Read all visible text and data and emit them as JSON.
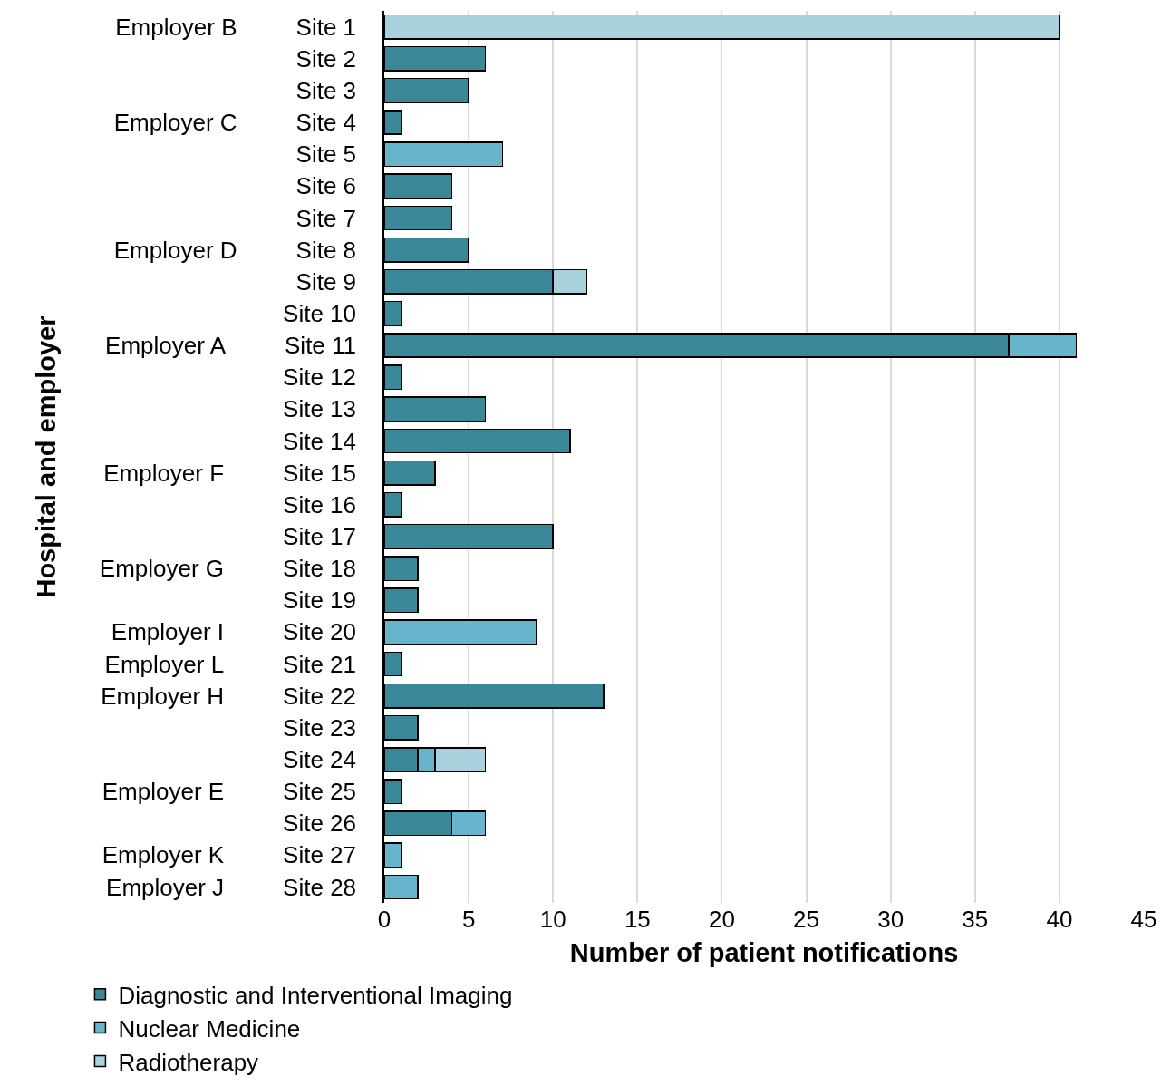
{
  "chart_data": {
    "type": "bar",
    "orientation": "horizontal",
    "stacked": true,
    "xlabel": "Number of patient notifications",
    "ylabel": "Hospital and employer",
    "categories": [
      "Employer B\tSite 1",
      "Site 2",
      "Site 3",
      "Employer C\tSite 4",
      "Site 5",
      "Site 6",
      "Site 7",
      "Employer D\tSite 8",
      "Site 9",
      "Site 10",
      "Employer A\tSite 11",
      "Site 12",
      "Site 13",
      "Site 14",
      "Employer F\tSite 15",
      "Site 16",
      "Site 17",
      "Employer G\tSite 18",
      "Site 19",
      "Employer I\tSite 20",
      "Employer L\tSite 21",
      "Employer H\tSite 22",
      "Site 23",
      "Site 24",
      "Employer E\tSite 25",
      "Site 26",
      "Employer K\tSite 27",
      "Employer J\tSite 28"
    ],
    "series": [
      {
        "name": "Diagnostic and Interventional Imaging",
        "color": "#3a8799",
        "values": [
          null,
          6,
          5,
          1,
          null,
          4,
          4,
          5,
          10,
          1,
          37,
          1,
          6,
          11,
          3,
          1,
          10,
          2,
          2,
          null,
          1,
          13,
          2,
          2,
          1,
          4,
          null,
          null
        ]
      },
      {
        "name": "Nuclear Medicine",
        "color": "#66b5cc",
        "values": [
          null,
          null,
          null,
          null,
          7,
          null,
          null,
          null,
          null,
          null,
          4,
          null,
          null,
          null,
          null,
          null,
          null,
          null,
          null,
          9,
          null,
          null,
          null,
          1,
          null,
          2,
          1,
          2
        ]
      },
      {
        "name": "Radiotherapy",
        "color": "#a8d1de",
        "values": [
          40,
          null,
          null,
          null,
          null,
          null,
          null,
          null,
          2,
          null,
          null,
          null,
          null,
          null,
          null,
          null,
          null,
          null,
          null,
          null,
          null,
          null,
          null,
          3,
          null,
          null,
          null,
          null
        ]
      }
    ],
    "xlim": [
      0,
      45
    ],
    "xticks": [
      0,
      5,
      10,
      15,
      20,
      25,
      30,
      35,
      40,
      45
    ],
    "grid": "x",
    "legend": "bottom"
  }
}
